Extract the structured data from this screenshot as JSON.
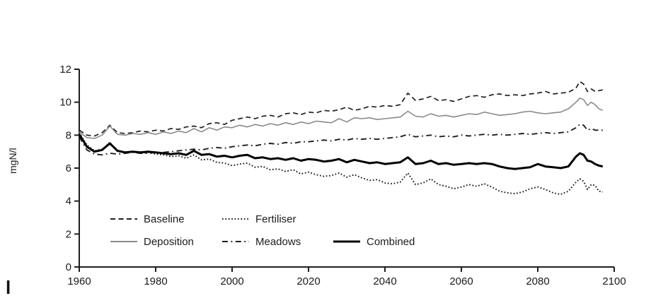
{
  "page": {
    "stray_mark": "l"
  },
  "chart_data": {
    "type": "line",
    "title": "",
    "xlabel": "",
    "ylabel": "mgN/l",
    "xlim": [
      1960,
      2100
    ],
    "ylim": [
      0,
      12
    ],
    "x_ticks": [
      1960,
      1980,
      2000,
      2020,
      2040,
      2060,
      2080,
      2100
    ],
    "y_ticks": [
      0,
      2,
      4,
      6,
      8,
      10,
      12
    ],
    "grid": false,
    "legend_position": "inside-lower-left",
    "axis_color": "#1f1f1f",
    "years": [
      1960,
      1962,
      1964,
      1966,
      1968,
      1970,
      1972,
      1974,
      1976,
      1978,
      1980,
      1982,
      1984,
      1986,
      1988,
      1990,
      1992,
      1994,
      1996,
      1998,
      2000,
      2002,
      2004,
      2006,
      2008,
      2010,
      2012,
      2014,
      2016,
      2018,
      2020,
      2022,
      2024,
      2026,
      2028,
      2030,
      2032,
      2034,
      2036,
      2038,
      2040,
      2042,
      2044,
      2046,
      2048,
      2050,
      2052,
      2054,
      2056,
      2058,
      2060,
      2062,
      2064,
      2066,
      2068,
      2070,
      2072,
      2074,
      2076,
      2078,
      2080,
      2082,
      2084,
      2086,
      2088,
      2090,
      2091,
      2092,
      2093,
      2094,
      2095,
      2096,
      2097
    ],
    "series": [
      {
        "name": "Baseline",
        "style": "dashed",
        "color": "#1f1f1f",
        "width": 1.7,
        "values": [
          8.3,
          8.0,
          7.95,
          8.15,
          8.6,
          8.15,
          8.1,
          8.15,
          8.25,
          8.2,
          8.3,
          8.25,
          8.4,
          8.35,
          8.5,
          8.55,
          8.45,
          8.7,
          8.75,
          8.65,
          8.9,
          9.0,
          9.1,
          9.0,
          9.15,
          9.2,
          9.1,
          9.3,
          9.35,
          9.25,
          9.4,
          9.35,
          9.5,
          9.45,
          9.55,
          9.7,
          9.5,
          9.6,
          9.75,
          9.7,
          9.8,
          9.75,
          9.85,
          10.55,
          10.1,
          10.2,
          10.35,
          10.1,
          10.15,
          10.05,
          10.2,
          10.35,
          10.4,
          10.3,
          10.45,
          10.5,
          10.4,
          10.45,
          10.4,
          10.5,
          10.55,
          10.65,
          10.5,
          10.55,
          10.6,
          10.85,
          11.25,
          11.1,
          10.65,
          10.8,
          10.65,
          10.7,
          10.75
        ]
      },
      {
        "name": "Fertiliser",
        "style": "dotted",
        "color": "#1f1f1f",
        "width": 2,
        "values": [
          8.15,
          7.4,
          7.05,
          7.15,
          7.55,
          7.05,
          6.95,
          7.0,
          6.9,
          6.95,
          6.85,
          6.8,
          6.7,
          6.75,
          6.6,
          6.8,
          6.5,
          6.55,
          6.35,
          6.3,
          6.15,
          6.25,
          6.3,
          6.05,
          6.1,
          5.9,
          5.95,
          5.8,
          5.9,
          5.65,
          5.75,
          5.6,
          5.5,
          5.55,
          5.7,
          5.45,
          5.6,
          5.4,
          5.25,
          5.3,
          5.1,
          5.05,
          5.15,
          5.7,
          5.0,
          5.1,
          5.35,
          5.0,
          4.9,
          4.75,
          4.85,
          5.0,
          4.9,
          5.05,
          4.85,
          4.6,
          4.5,
          4.45,
          4.55,
          4.75,
          4.85,
          4.7,
          4.5,
          4.4,
          4.6,
          5.15,
          5.35,
          5.2,
          4.7,
          5.0,
          4.95,
          4.6,
          4.55
        ]
      },
      {
        "name": "Deposition",
        "style": "solid",
        "color": "#8a8a8a",
        "width": 1.6,
        "values": [
          8.2,
          7.85,
          7.8,
          8.0,
          8.55,
          8.05,
          8.0,
          8.1,
          8.05,
          8.15,
          8.05,
          8.2,
          8.1,
          8.25,
          8.15,
          8.4,
          8.2,
          8.45,
          8.3,
          8.5,
          8.45,
          8.6,
          8.5,
          8.65,
          8.55,
          8.7,
          8.6,
          8.75,
          8.65,
          8.8,
          8.7,
          8.85,
          8.8,
          8.75,
          9.0,
          8.8,
          9.05,
          9.0,
          9.05,
          8.95,
          9.0,
          9.05,
          9.1,
          9.45,
          9.15,
          9.1,
          9.3,
          9.15,
          9.2,
          9.1,
          9.2,
          9.3,
          9.25,
          9.4,
          9.3,
          9.2,
          9.25,
          9.3,
          9.4,
          9.45,
          9.35,
          9.3,
          9.35,
          9.4,
          9.6,
          10.0,
          10.25,
          10.15,
          9.8,
          10.0,
          9.85,
          9.6,
          9.5
        ]
      },
      {
        "name": "Meadows",
        "style": "dashdot",
        "color": "#1f1f1f",
        "width": 1.9,
        "values": [
          7.9,
          7.1,
          6.85,
          6.8,
          6.9,
          6.85,
          6.9,
          6.95,
          6.9,
          6.9,
          6.95,
          6.95,
          7.0,
          7.05,
          7.1,
          7.15,
          7.1,
          7.2,
          7.25,
          7.2,
          7.3,
          7.35,
          7.4,
          7.35,
          7.45,
          7.5,
          7.45,
          7.55,
          7.5,
          7.6,
          7.6,
          7.65,
          7.7,
          7.65,
          7.75,
          7.7,
          7.8,
          7.75,
          7.8,
          7.75,
          7.8,
          7.85,
          7.9,
          8.05,
          7.9,
          7.95,
          8.0,
          7.9,
          7.95,
          7.9,
          8.0,
          7.95,
          8.0,
          8.05,
          8.0,
          8.05,
          8.0,
          8.05,
          8.1,
          8.05,
          8.1,
          8.15,
          8.1,
          8.15,
          8.2,
          8.45,
          8.65,
          8.6,
          8.3,
          8.4,
          8.3,
          8.3,
          8.3
        ]
      },
      {
        "name": "Combined",
        "style": "solid",
        "color": "#000000",
        "width": 3,
        "values": [
          8.05,
          7.3,
          7.0,
          7.1,
          7.5,
          7.05,
          6.95,
          7.0,
          6.95,
          7.0,
          6.95,
          6.9,
          6.85,
          6.9,
          6.8,
          7.05,
          6.8,
          6.85,
          6.7,
          6.75,
          6.65,
          6.75,
          6.8,
          6.6,
          6.65,
          6.55,
          6.6,
          6.5,
          6.6,
          6.45,
          6.55,
          6.5,
          6.4,
          6.45,
          6.55,
          6.35,
          6.5,
          6.4,
          6.3,
          6.35,
          6.25,
          6.3,
          6.35,
          6.65,
          6.25,
          6.3,
          6.45,
          6.25,
          6.3,
          6.2,
          6.25,
          6.3,
          6.25,
          6.3,
          6.25,
          6.1,
          6.0,
          5.95,
          6.0,
          6.05,
          6.25,
          6.1,
          6.05,
          6.0,
          6.1,
          6.7,
          6.9,
          6.8,
          6.45,
          6.4,
          6.25,
          6.15,
          6.1
        ]
      }
    ]
  }
}
